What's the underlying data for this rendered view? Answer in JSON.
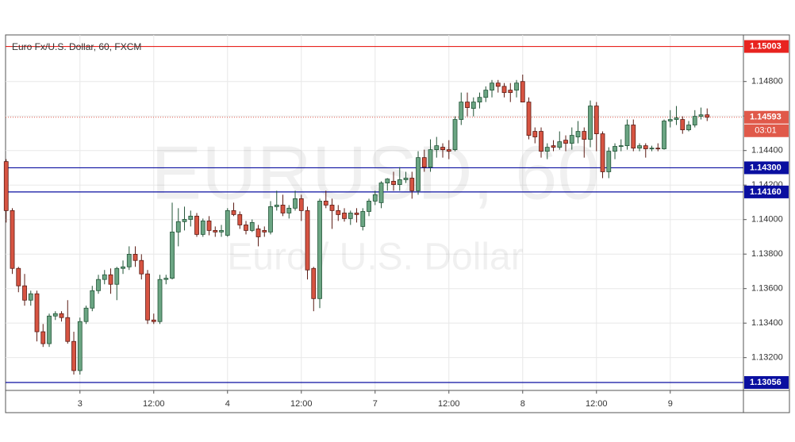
{
  "chart_data": {
    "type": "candlestick",
    "title": "Euro Fx/U.S. Dollar, 60, FXCM",
    "watermark": "EURUSD, 60",
    "watermark_subtitle": "Euro / U.S. Dollar",
    "up_color": "#6ba583",
    "up_border": "#225437",
    "down_color": "#d75442",
    "down_border": "#5b1a13",
    "grid": true,
    "ylim": [
      1.1301,
      1.1507
    ],
    "yticks": [
      {
        "value": 1.132,
        "label": "1.13200"
      },
      {
        "value": 1.134,
        "label": "1.13400"
      },
      {
        "value": 1.136,
        "label": "1.13600"
      },
      {
        "value": 1.138,
        "label": "1.13800"
      },
      {
        "value": 1.14,
        "label": "1.14000"
      },
      {
        "value": 1.142,
        "label": "1.14200"
      },
      {
        "value": 1.144,
        "label": "1.14400"
      },
      {
        "value": 1.146,
        "label": "1.14600"
      },
      {
        "value": 1.148,
        "label": "1.14800"
      }
    ],
    "xlim": [
      -0.1,
      119.9
    ],
    "xticks": [
      {
        "value": 12,
        "label": "3"
      },
      {
        "value": 24,
        "label": "12:00"
      },
      {
        "value": 36,
        "label": "4"
      },
      {
        "value": 48,
        "label": "12:00"
      },
      {
        "value": 60,
        "label": "7"
      },
      {
        "value": 72,
        "label": "12:00"
      },
      {
        "value": 84,
        "label": "8"
      },
      {
        "value": 96,
        "label": "12:00"
      },
      {
        "value": 108,
        "label": "9"
      }
    ],
    "levels": [
      {
        "value": 1.15003,
        "color": "#e8231f"
      },
      {
        "value": {
          "value": 1.143,
          "label": "1.14300"
        },
        "color": "#0a0fa0"
      },
      {
        "value": {
          "value": 1.1416,
          "label": "1.14160"
        },
        "color": "#0a0fa0"
      },
      {
        "value": 1.13056,
        "color": "#0a0fa0"
      }
    ],
    "last_price": 1.14593,
    "last_color": "#e0594a",
    "countdown": "03:01",
    "open": [
      1.14336,
      1.14052,
      1.13717,
      1.13616,
      1.13533,
      1.1357,
      1.1335,
      1.13281,
      1.13441,
      1.13455,
      1.13432,
      1.13294,
      1.13125,
      1.13409,
      1.13487,
      1.13588,
      1.13653,
      1.1368,
      1.13625,
      1.13717,
      1.13726,
      1.13799,
      1.13763,
      1.13685,
      1.13418,
      1.13409,
      1.13653,
      1.1366,
      1.13928,
      1.13988,
      1.14001,
      1.1402,
      1.13914,
      1.13992,
      1.13937,
      1.13928,
      1.13909,
      1.14052,
      1.14029,
      1.13969,
      1.13937,
      1.13946,
      1.13937,
      1.13928,
      1.14075,
      1.14084,
      1.14038,
      1.14066,
      1.14121,
      1.14052,
      1.13717,
      1.13542,
      1.14107,
      1.14084,
      1.14052,
      1.14038,
      1.14006,
      1.14038,
      1.1396,
      1.14047,
      1.14107,
      1.14098,
      1.14212,
      1.14222,
      1.14203,
      1.14231,
      1.1424,
      1.14167,
      1.14359,
      1.14304,
      1.14405,
      1.14419,
      1.14405,
      1.14405,
      1.1458,
      1.14681,
      1.14644,
      1.14681,
      1.14708,
      1.1475,
      1.14791,
      1.14772,
      1.1475,
      1.1475,
      1.148,
      1.14681,
      1.14511,
      1.14511,
      1.14396,
      1.14428,
      1.14419,
      1.1446,
      1.14442,
      1.14479,
      1.14511,
      1.14465,
      1.14658,
      1.14497,
      1.14277,
      1.14396,
      1.14424,
      1.14428,
      1.14548,
      1.14414,
      1.14428,
      1.1441,
      1.14414,
      1.1441,
      1.14571,
      1.1458,
      1.1458,
      1.1452,
      1.14548,
      1.14598,
      1.14607
    ],
    "high": [
      1.1435,
      1.14066,
      1.13726,
      1.13685,
      1.13588,
      1.13588,
      1.13395,
      1.13455,
      1.13469,
      1.13469,
      1.13533,
      1.1335,
      1.13432,
      1.13501,
      1.13616,
      1.1368,
      1.13708,
      1.13717,
      1.13726,
      1.13763,
      1.13845,
      1.13845,
      1.13799,
      1.13708,
      1.13455,
      1.1368,
      1.1368,
      1.14098,
      1.14066,
      1.14075,
      1.14052,
      1.14038,
      1.14006,
      1.1402,
      1.1396,
      1.13969,
      1.14066,
      1.14098,
      1.14047,
      1.13992,
      1.14001,
      1.13969,
      1.1396,
      1.14107,
      1.14167,
      1.14144,
      1.14084,
      1.14167,
      1.14144,
      1.14075,
      1.13726,
      1.14121,
      1.14167,
      1.14121,
      1.14084,
      1.14066,
      1.14052,
      1.14066,
      1.14066,
      1.14121,
      1.14167,
      1.14222,
      1.1424,
      1.14277,
      1.14304,
      1.14277,
      1.14277,
      1.14396,
      1.14405,
      1.14465,
      1.14479,
      1.14442,
      1.1446,
      1.14598,
      1.14736,
      1.14736,
      1.14708,
      1.14736,
      1.14772,
      1.14809,
      1.14809,
      1.14791,
      1.14791,
      1.14809,
      1.1484,
      1.14708,
      1.14534,
      1.14534,
      1.14442,
      1.1446,
      1.14511,
      1.14488,
      1.14534,
      1.14571,
      1.14534,
      1.1469,
      1.14681,
      1.14511,
      1.14419,
      1.14442,
      1.14465,
      1.1458,
      1.1458,
      1.14442,
      1.14442,
      1.14428,
      1.14442,
      1.1458,
      1.14634,
      1.14658,
      1.14598,
      1.14571,
      1.14634,
      1.14649,
      1.14644
    ],
    "low": [
      1.13983,
      1.13685,
      1.13579,
      1.13501,
      1.13501,
      1.13294,
      1.13262,
      1.13262,
      1.13418,
      1.13409,
      1.13281,
      1.13102,
      1.13102,
      1.13395,
      1.13469,
      1.1357,
      1.13625,
      1.1357,
      1.13533,
      1.13685,
      1.13708,
      1.13726,
      1.13653,
      1.13395,
      1.13395,
      1.13395,
      1.13625,
      1.13653,
      1.13845,
      1.13937,
      1.1396,
      1.139,
      1.139,
      1.13909,
      1.139,
      1.139,
      1.139,
      1.1402,
      1.13946,
      1.13914,
      1.13928,
      1.13845,
      1.139,
      1.13914,
      1.14052,
      1.1402,
      1.14006,
      1.14052,
      1.13992,
      1.13653,
      1.13469,
      1.13487,
      1.14066,
      1.13946,
      1.13992,
      1.13988,
      1.13969,
      1.13983,
      1.13937,
      1.1402,
      1.14084,
      1.14066,
      1.14167,
      1.14167,
      1.14167,
      1.14212,
      1.14121,
      1.14144,
      1.14277,
      1.14277,
      1.14359,
      1.14359,
      1.1435,
      1.14396,
      1.14548,
      1.14598,
      1.14598,
      1.14644,
      1.14681,
      1.14708,
      1.14736,
      1.14708,
      1.14681,
      1.14708,
      1.14681,
      1.14465,
      1.14442,
      1.14359,
      1.1435,
      1.14396,
      1.14405,
      1.14396,
      1.14405,
      1.14442,
      1.14359,
      1.14419,
      1.14396,
      1.1424,
      1.1424,
      1.1435,
      1.14396,
      1.14405,
      1.14396,
      1.14396,
      1.14359,
      1.14396,
      1.14396,
      1.14405,
      1.14534,
      1.14548,
      1.14497,
      1.14511,
      1.14534,
      1.1458,
      1.14571
    ],
    "close": [
      1.14052,
      1.13717,
      1.13616,
      1.13533,
      1.1357,
      1.1335,
      1.13281,
      1.13441,
      1.13455,
      1.13432,
      1.13294,
      1.13125,
      1.13409,
      1.13487,
      1.13588,
      1.13653,
      1.1368,
      1.13625,
      1.13717,
      1.13726,
      1.13799,
      1.13763,
      1.13685,
      1.13418,
      1.13409,
      1.13653,
      1.1366,
      1.13928,
      1.13988,
      1.14001,
      1.1402,
      1.13914,
      1.13992,
      1.13937,
      1.13928,
      1.13937,
      1.14052,
      1.14029,
      1.13969,
      1.13937,
      1.13983,
      1.139,
      1.13928,
      1.14075,
      1.14084,
      1.14038,
      1.14066,
      1.14121,
      1.14052,
      1.13708,
      1.13542,
      1.14107,
      1.14084,
      1.14052,
      1.14029,
      1.14006,
      1.14038,
      1.14029,
      1.14047,
      1.14107,
      1.14144,
      1.14212,
      1.14235,
      1.14203,
      1.14231,
      1.1424,
      1.14167,
      1.14359,
      1.14304,
      1.14405,
      1.14428,
      1.14405,
      1.14396,
      1.1458,
      1.14681,
      1.14649,
      1.14681,
      1.14708,
      1.1475,
      1.14791,
      1.14772,
      1.14736,
      1.14736,
      1.14791,
      1.14681,
      1.14488,
      1.14479,
      1.14396,
      1.14419,
      1.14419,
      1.14451,
      1.14442,
      1.14488,
      1.14511,
      1.14465,
      1.14658,
      1.14497,
      1.14277,
      1.14396,
      1.14424,
      1.14428,
      1.14548,
      1.14414,
      1.14428,
      1.1441,
      1.14414,
      1.1441,
      1.14571,
      1.1458,
      1.14589,
      1.1452,
      1.14548,
      1.14598,
      1.14607,
      1.14593
    ]
  }
}
